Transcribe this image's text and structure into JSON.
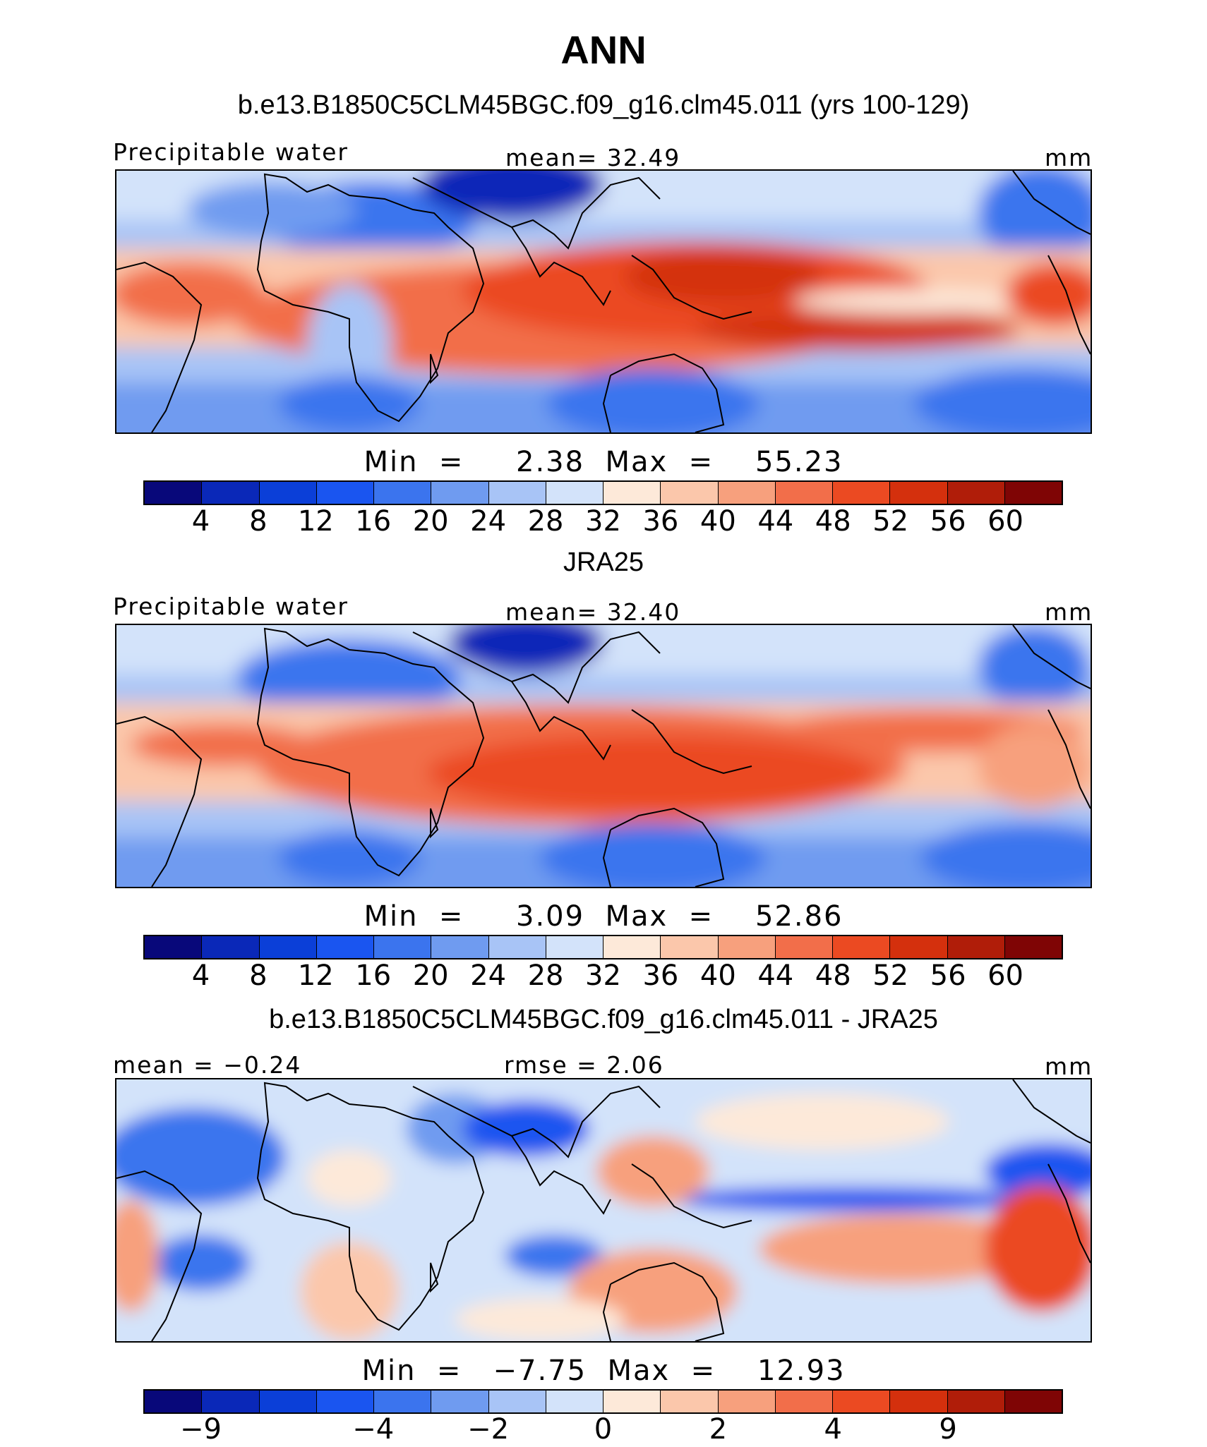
{
  "title": "ANN",
  "colors": {
    "absolute": [
      "#08087a",
      "#0a28b8",
      "#0b3fd8",
      "#1a55f0",
      "#3b74ee",
      "#6f9bf0",
      "#a8c4f6",
      "#d3e3fa",
      "#fde9d9",
      "#fbc7ab",
      "#f7a07d",
      "#f26e4a",
      "#eb4a22",
      "#d4300d",
      "#b01d09",
      "#7f0505"
    ],
    "diff": [
      "#08087a",
      "#0a28b8",
      "#0b3fd8",
      "#1a55f0",
      "#3b74ee",
      "#6f9bf0",
      "#a8c4f6",
      "#d3e3fa",
      "#fde9d9",
      "#fbc7ab",
      "#f7a07d",
      "#f26e4a",
      "#eb4a22",
      "#d4300d",
      "#b01d09",
      "#7f0505"
    ]
  },
  "panels": [
    {
      "title": "b.e13.B1850C5CLM45BGC.f09_g16.clm45.011 (yrs 100-129)",
      "left_label": "Precipitable water",
      "center_label": "mean=   32.49",
      "right_label": "mm",
      "min_max": "Min  =     2.38  Max  =    55.23",
      "ticks": [
        "4",
        "8",
        "12",
        "16",
        "20",
        "24",
        "28",
        "32",
        "36",
        "40",
        "44",
        "48",
        "52",
        "56",
        "60"
      ]
    },
    {
      "title": "JRA25",
      "left_label": "Precipitable water",
      "center_label": "mean=   32.40",
      "right_label": "mm",
      "min_max": "Min  =     3.09  Max  =    52.86",
      "ticks": [
        "4",
        "8",
        "12",
        "16",
        "20",
        "24",
        "28",
        "32",
        "36",
        "40",
        "44",
        "48",
        "52",
        "56",
        "60"
      ]
    },
    {
      "title": "b.e13.B1850C5CLM45BGC.f09_g16.clm45.011 - JRA25",
      "left_label": "mean =  −0.24",
      "center_label": "rmse =    2.06",
      "right_label": "mm",
      "min_max": "Min  =   −7.75  Max  =    12.93",
      "ticks": [
        "−9",
        "−4",
        "−2",
        "0",
        "2",
        "4",
        "9"
      ]
    }
  ]
}
